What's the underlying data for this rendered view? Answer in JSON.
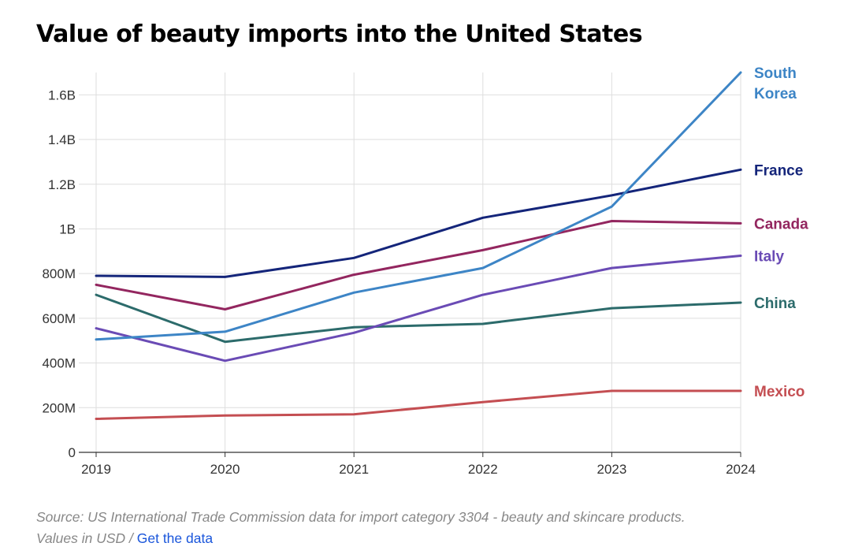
{
  "chart_data": {
    "type": "line",
    "title": "Value of beauty imports into the United States",
    "x": [
      "2019",
      "2020",
      "2021",
      "2022",
      "2023",
      "2024"
    ],
    "ylim": [
      0,
      1700000000
    ],
    "y_ticks": [
      {
        "value": 0,
        "label": "0"
      },
      {
        "value": 200000000,
        "label": "200M"
      },
      {
        "value": 400000000,
        "label": "400M"
      },
      {
        "value": 600000000,
        "label": "600M"
      },
      {
        "value": 800000000,
        "label": "800M"
      },
      {
        "value": 1000000000,
        "label": "1B"
      },
      {
        "value": 1200000000,
        "label": "1.2B"
      },
      {
        "value": 1400000000,
        "label": "1.4B"
      },
      {
        "value": 1600000000,
        "label": "1.6B"
      }
    ],
    "grid": true,
    "legend": "direct labels at right end of lines",
    "series": [
      {
        "name": "South Korea",
        "label_lines": [
          "South",
          "Korea"
        ],
        "color": "#3d85c6",
        "values": [
          505000000,
          540000000,
          715000000,
          825000000,
          1100000000,
          1700000000
        ]
      },
      {
        "name": "France",
        "label_lines": [
          "France"
        ],
        "color": "#14257a",
        "values": [
          790000000,
          785000000,
          870000000,
          1050000000,
          1150000000,
          1265000000
        ]
      },
      {
        "name": "Canada",
        "label_lines": [
          "Canada"
        ],
        "color": "#93265f",
        "values": [
          750000000,
          640000000,
          795000000,
          905000000,
          1035000000,
          1025000000
        ]
      },
      {
        "name": "Italy",
        "label_lines": [
          "Italy"
        ],
        "color": "#6a4bb5",
        "values": [
          555000000,
          410000000,
          535000000,
          705000000,
          825000000,
          880000000
        ]
      },
      {
        "name": "China",
        "label_lines": [
          "China"
        ],
        "color": "#2c6b6b",
        "values": [
          705000000,
          495000000,
          560000000,
          575000000,
          645000000,
          670000000
        ]
      },
      {
        "name": "Mexico",
        "label_lines": [
          "Mexico"
        ],
        "color": "#c44e52",
        "values": [
          150000000,
          165000000,
          170000000,
          225000000,
          275000000,
          275000000
        ]
      }
    ]
  },
  "footer": {
    "source_text": "Source: US International Trade Commission data for import category 3304 - beauty and skincare products.",
    "values_text": "Values in USD",
    "separator": " / ",
    "link_text": "Get the data"
  }
}
